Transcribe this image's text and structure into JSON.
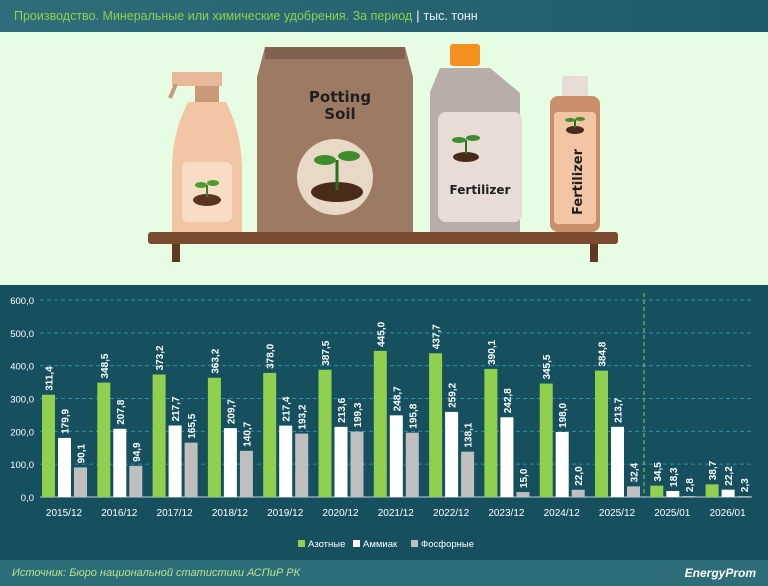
{
  "header": {
    "title": "Производство. Минеральные или химические удобрения. За период",
    "separator": "|",
    "unit": "тыс. тонн"
  },
  "illustration": {
    "bag_text_1": "Potting",
    "bag_text_2": "Soil",
    "jug_text": "Fertilizer",
    "bottle_text": "Fertilizer"
  },
  "footer": {
    "source": "Источник: Бюро национальной статистики АСПиР РК",
    "logo": "EnergyProm"
  },
  "colors": {
    "azot": "#8fd14f",
    "ammiak": "#ffffff",
    "fosfor": "#bfbfbf",
    "background": "#16505f"
  },
  "chart_data": {
    "type": "bar",
    "categories": [
      "2015/12",
      "2016/12",
      "2017/12",
      "2018/12",
      "2019/12",
      "2020/12",
      "2021/12",
      "2022/12",
      "2023/12",
      "2024/12",
      "2025/12",
      "2025/01",
      "2026/01"
    ],
    "series": [
      {
        "name": "Азотные",
        "values": [
          311.4,
          348.5,
          373.2,
          363.2,
          378.0,
          387.5,
          445.0,
          437.7,
          390.1,
          345.5,
          384.8,
          34.5,
          38.7
        ]
      },
      {
        "name": "Аммиак",
        "values": [
          179.9,
          207.8,
          217.7,
          209.7,
          217.4,
          213.6,
          248.7,
          259.2,
          242.8,
          198.0,
          213.7,
          18.3,
          22.2
        ]
      },
      {
        "name": "Фосфорные",
        "values": [
          90.1,
          94.9,
          165.5,
          140.7,
          193.2,
          199.3,
          195.8,
          138.1,
          15.0,
          22.0,
          32.4,
          2.8,
          2.3
        ]
      }
    ],
    "yticks": [
      "0,0",
      "100,0",
      "200,0",
      "300,0",
      "400,0",
      "500,0",
      "600,0"
    ],
    "ylim": [
      0,
      600
    ],
    "grid": true,
    "legend": "bottom",
    "data_labels": true
  }
}
